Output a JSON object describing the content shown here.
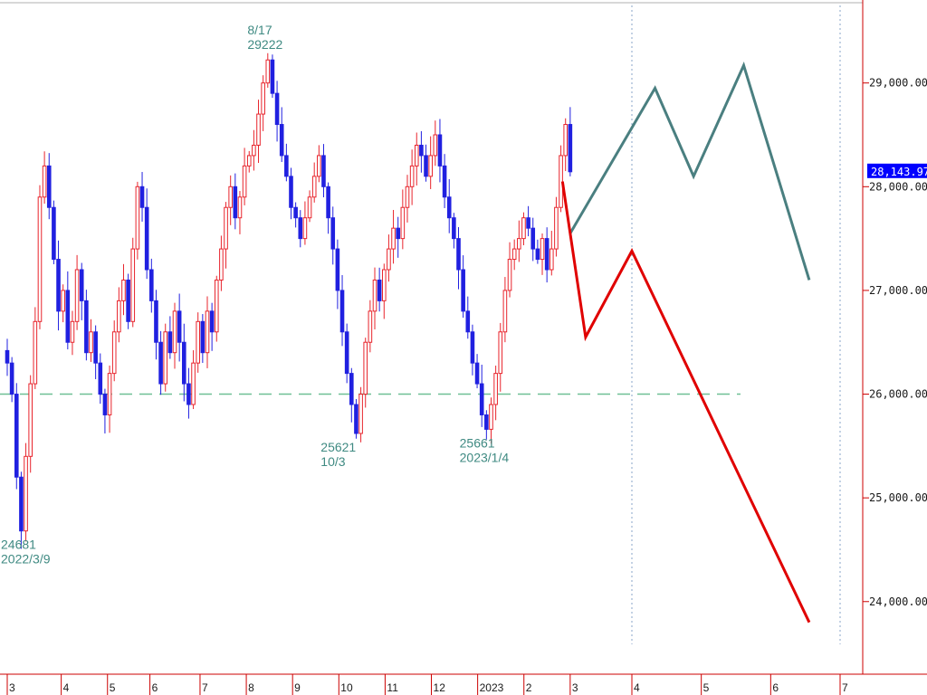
{
  "colors": {
    "up_candle": "#e8242c",
    "down_candle": "#2020e0",
    "scenario_bull": "#4a7f80",
    "scenario_bear": "#e00000",
    "support_line": "#6fbf95",
    "price_tag_bg": "#0000ff",
    "axis": "#cc0000"
  },
  "chart_data": {
    "type": "candlestick",
    "title": "",
    "xlabel": "",
    "ylabel": "",
    "ylim": [
      23300,
      29800
    ],
    "grid": false,
    "y_ticks": [
      "29,000.00",
      "28,000.00",
      "27,000.00",
      "26,000.00",
      "25,000.00",
      "24,000.00"
    ],
    "y_tick_values": [
      29000,
      28000,
      27000,
      26000,
      25000,
      24000
    ],
    "x_ticks": [
      {
        "label": "3",
        "i": 0
      },
      {
        "label": "4",
        "i": 14
      },
      {
        "label": "5",
        "i": 26
      },
      {
        "label": "6",
        "i": 37
      },
      {
        "label": "7",
        "i": 50
      },
      {
        "label": "8",
        "i": 62
      },
      {
        "label": "9",
        "i": 74
      },
      {
        "label": "10",
        "i": 86
      },
      {
        "label": "11",
        "i": 98
      },
      {
        "label": "12",
        "i": 110
      },
      {
        "label": "2023",
        "i": 122
      },
      {
        "label": "2",
        "i": 134
      },
      {
        "label": "3",
        "i": 146
      },
      {
        "label": "4",
        "i": 162
      },
      {
        "label": "5",
        "i": 180
      },
      {
        "label": "6",
        "i": 198
      },
      {
        "label": "7",
        "i": 216
      }
    ],
    "current_price": "28,143.97",
    "current_price_value": 28143.97,
    "support_level": 26000,
    "annotations": [
      {
        "lines": [
          "8/17",
          "29222"
        ],
        "i": 67,
        "value": 29222,
        "pos": "above"
      },
      {
        "lines": [
          "25621",
          "10/3"
        ],
        "i": 86,
        "value": 25621,
        "pos": "below"
      },
      {
        "lines": [
          "25661",
          "2023/1/4"
        ],
        "i": 122,
        "value": 25661,
        "pos": "below"
      },
      {
        "lines": [
          "24681",
          "2022/3/9"
        ],
        "i": 0,
        "value": 24681,
        "pos": "below"
      }
    ],
    "guide_lines_i": [
      162,
      216
    ],
    "closes": [
      26300,
      26000,
      25200,
      24681,
      25400,
      26100,
      26700,
      27900,
      28200,
      27800,
      27300,
      26800,
      27000,
      26500,
      26700,
      27200,
      26900,
      26400,
      26600,
      26300,
      26000,
      25800,
      26200,
      26600,
      26900,
      27100,
      26700,
      27400,
      28000,
      27800,
      27200,
      26900,
      26500,
      26100,
      26600,
      26400,
      26800,
      26500,
      26100,
      25900,
      26300,
      26700,
      26400,
      26800,
      26600,
      27100,
      27400,
      27800,
      28000,
      27700,
      27900,
      28200,
      28300,
      28400,
      28700,
      29000,
      29222,
      28900,
      28600,
      28300,
      28100,
      27800,
      27700,
      27500,
      27700,
      27900,
      28100,
      28300,
      28000,
      27700,
      27400,
      27000,
      26600,
      26200,
      25900,
      25621,
      26000,
      26500,
      26800,
      27100,
      26900,
      27200,
      27400,
      27600,
      27500,
      27800,
      28000,
      28200,
      28400,
      28300,
      28100,
      28300,
      28500,
      28200,
      27900,
      27700,
      27500,
      27200,
      26800,
      26600,
      26300,
      26100,
      25800,
      25661,
      25900,
      26200,
      26600,
      27000,
      27300,
      27400,
      27500,
      27700,
      27600,
      27400,
      27300,
      27500,
      27200,
      27400,
      27800,
      28300,
      28600,
      28143.97
    ],
    "series": [
      {
        "name": "",
        "type": "bull-scenario",
        "color": "#4a7f80",
        "points": [
          [
            146,
            27550
          ],
          [
            168,
            28950
          ],
          [
            178,
            28100
          ],
          [
            191,
            29170
          ],
          [
            208,
            27100
          ]
        ]
      },
      {
        "name": "",
        "type": "bear-scenario",
        "color": "#e00000",
        "points": [
          [
            144,
            28050
          ],
          [
            150,
            26550
          ],
          [
            162,
            27380
          ],
          [
            208,
            23800
          ]
        ]
      }
    ]
  }
}
